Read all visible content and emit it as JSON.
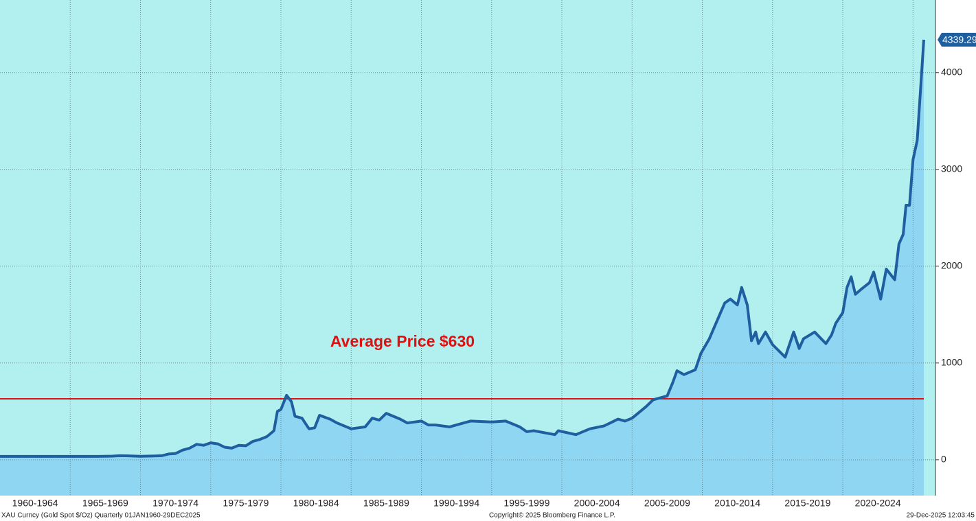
{
  "chart_data": {
    "type": "area",
    "series": [
      {
        "name": "XAU Curncy",
        "color": "#1f5fa0",
        "fill": "#8fd6f2",
        "x": [
          1960,
          1961,
          1962,
          1963,
          1964,
          1965,
          1966,
          1967,
          1968,
          1968.5,
          1969,
          1970,
          1971,
          1971.5,
          1972,
          1972.5,
          1973,
          1973.5,
          1974,
          1974.5,
          1975,
          1975.5,
          1976,
          1976.5,
          1977,
          1977.5,
          1978,
          1978.5,
          1979,
          1979.5,
          1979.75,
          1980,
          1980.4,
          1980.75,
          1981,
          1981.5,
          1982,
          1982.4,
          1982.75,
          1983.5,
          1984,
          1985,
          1986,
          1986.5,
          1987,
          1987.5,
          1988.5,
          1989,
          1990,
          1990.5,
          1991,
          1992,
          1993,
          1993.5,
          1995,
          1996,
          1997,
          1997.5,
          1998,
          1999.5,
          1999.75,
          2001,
          2002,
          2003,
          2004,
          2004.5,
          2005,
          2006,
          2006.5,
          2007.5,
          2007.9,
          2008.2,
          2008.7,
          2009.5,
          2009.9,
          2010.5,
          2011,
          2011.6,
          2012,
          2012.5,
          2012.8,
          2013.2,
          2013.5,
          2013.8,
          2014,
          2014.5,
          2015,
          2015.9,
          2016.5,
          2016.9,
          2017.2,
          2018,
          2018.8,
          2019.2,
          2019.5,
          2020,
          2020.3,
          2020.6,
          2020.9,
          2021.3,
          2021.9,
          2022.2,
          2022.7,
          2023.1,
          2023.7,
          2024,
          2024.3,
          2024.5,
          2024.75,
          2025,
          2025.3,
          2025.77
        ],
        "values": [
          35,
          35,
          35,
          35,
          35,
          35,
          35,
          35,
          38,
          42,
          41,
          36,
          40,
          42,
          60,
          65,
          100,
          120,
          160,
          150,
          175,
          165,
          130,
          120,
          150,
          145,
          190,
          210,
          240,
          300,
          500,
          520,
          667,
          600,
          450,
          430,
          320,
          330,
          460,
          420,
          380,
          320,
          340,
          430,
          410,
          480,
          420,
          380,
          400,
          360,
          360,
          340,
          380,
          400,
          390,
          400,
          340,
          290,
          300,
          260,
          300,
          260,
          320,
          350,
          420,
          400,
          430,
          550,
          620,
          660,
          800,
          920,
          880,
          930,
          1100,
          1250,
          1420,
          1620,
          1660,
          1600,
          1780,
          1600,
          1230,
          1320,
          1200,
          1320,
          1190,
          1060,
          1320,
          1150,
          1250,
          1320,
          1200,
          1290,
          1410,
          1520,
          1780,
          1890,
          1710,
          1760,
          1830,
          1940,
          1660,
          1970,
          1860,
          2230,
          2330,
          2630,
          2630,
          3100,
          3300,
          4339.29
        ]
      }
    ],
    "xlim": [
      1960,
      2026.6
    ],
    "ylim": [
      -370,
      4750
    ],
    "yticks": [
      0,
      1000,
      2000,
      3000,
      4000
    ],
    "xticks": [
      {
        "value": 1962.5,
        "label": "1960-1964"
      },
      {
        "value": 1967.5,
        "label": "1965-1969"
      },
      {
        "value": 1972.5,
        "label": "1970-1974"
      },
      {
        "value": 1977.5,
        "label": "1975-1979"
      },
      {
        "value": 1982.5,
        "label": "1980-1984"
      },
      {
        "value": 1987.5,
        "label": "1985-1989"
      },
      {
        "value": 1992.5,
        "label": "1990-1994"
      },
      {
        "value": 1997.5,
        "label": "1995-1999"
      },
      {
        "value": 2002.5,
        "label": "2000-2004"
      },
      {
        "value": 2007.5,
        "label": "2005-2009"
      },
      {
        "value": 2012.5,
        "label": "2010-2014"
      },
      {
        "value": 2017.5,
        "label": "2015-2019"
      },
      {
        "value": 2022.5,
        "label": "2020-2024"
      }
    ],
    "xgrid": [
      1965,
      1970,
      1975,
      1980,
      1985,
      1990,
      1995,
      2000,
      2005,
      2010,
      2015,
      2020,
      2025
    ],
    "grid": true,
    "average": {
      "value": 630,
      "label": "Average Price $630",
      "color": "#e01010"
    },
    "footer_left": "XAU Curncy (Gold Spot  $/Oz) Quarterly 01JAN1960-29DEC2025",
    "footer_center": "Copyright© 2025 Bloomberg Finance L.P.",
    "footer_right": "29-Dec-2025 12:03:45"
  }
}
